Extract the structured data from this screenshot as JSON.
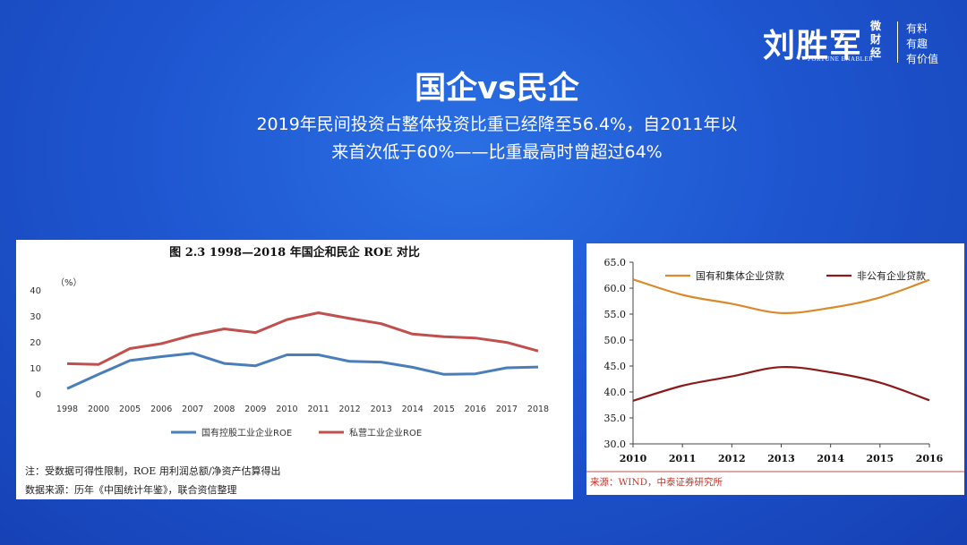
{
  "logo": {
    "name": "刘胜军",
    "sub": "微财经",
    "english": "FORTUNE ENABLER",
    "tagline": [
      "有料",
      "有趣",
      "有价值"
    ]
  },
  "slide": {
    "title": "国企vs民企",
    "subtitle_line1": "2019年民间投资占整体投资比重已经降至56.4%，自2011年以",
    "subtitle_line2": "来首次低于60%——比重最高时曾超过64%"
  },
  "chart_data": [
    {
      "type": "line",
      "title": "图 2.3    1998—2018 年国企和民企 ROE 对比",
      "ylabel": "（%）",
      "ylim": [
        0,
        40
      ],
      "yticks": [
        "0",
        "10",
        "20",
        "30",
        "40"
      ],
      "x": [
        "1998",
        "2000",
        "2005",
        "2006",
        "2007",
        "2008",
        "2009",
        "2010",
        "2011",
        "2012",
        "2013",
        "2014",
        "2015",
        "2016",
        "2017",
        "2018"
      ],
      "series": [
        {
          "name": "国有控股工业企业ROE",
          "color": "#4a7ebb",
          "values": [
            2,
            7.5,
            12.8,
            14.3,
            15.6,
            11.7,
            10.8,
            15.0,
            15.0,
            12.5,
            12.2,
            10.2,
            7.5,
            7.7,
            10.0,
            10.3
          ]
        },
        {
          "name": "私营工业企业ROE",
          "color": "#c0504d",
          "values": [
            11.6,
            11.3,
            17.4,
            19.3,
            22.6,
            25.0,
            23.6,
            28.6,
            31.2,
            29.0,
            27.0,
            23.0,
            22.0,
            21.5,
            19.8,
            16.5
          ]
        }
      ],
      "legend": "bottom",
      "notes": [
        "注：受数据可得性限制，ROE 用利润总额/净资产估算得出",
        "数据来源：历年《中国统计年鉴》，联合资信整理"
      ]
    },
    {
      "type": "line",
      "title": "",
      "ylim": [
        30,
        65
      ],
      "yticks": [
        "30.0",
        "35.0",
        "40.0",
        "45.0",
        "50.0",
        "55.0",
        "60.0",
        "65.0"
      ],
      "x": [
        "2010",
        "2011",
        "2012",
        "2013",
        "2014",
        "2015",
        "2016"
      ],
      "series": [
        {
          "name": "国有和集体企业贷款",
          "color": "#d98a2b",
          "values": [
            61.7,
            58.7,
            57.0,
            55.2,
            56.2,
            58.2,
            61.6
          ]
        },
        {
          "name": "非公有企业贷款",
          "color": "#8b1a1a",
          "values": [
            38.3,
            41.2,
            43.0,
            44.8,
            43.8,
            41.8,
            38.4
          ]
        }
      ],
      "legend": "top",
      "source": "来源：WIND，中泰证券研究所"
    }
  ]
}
